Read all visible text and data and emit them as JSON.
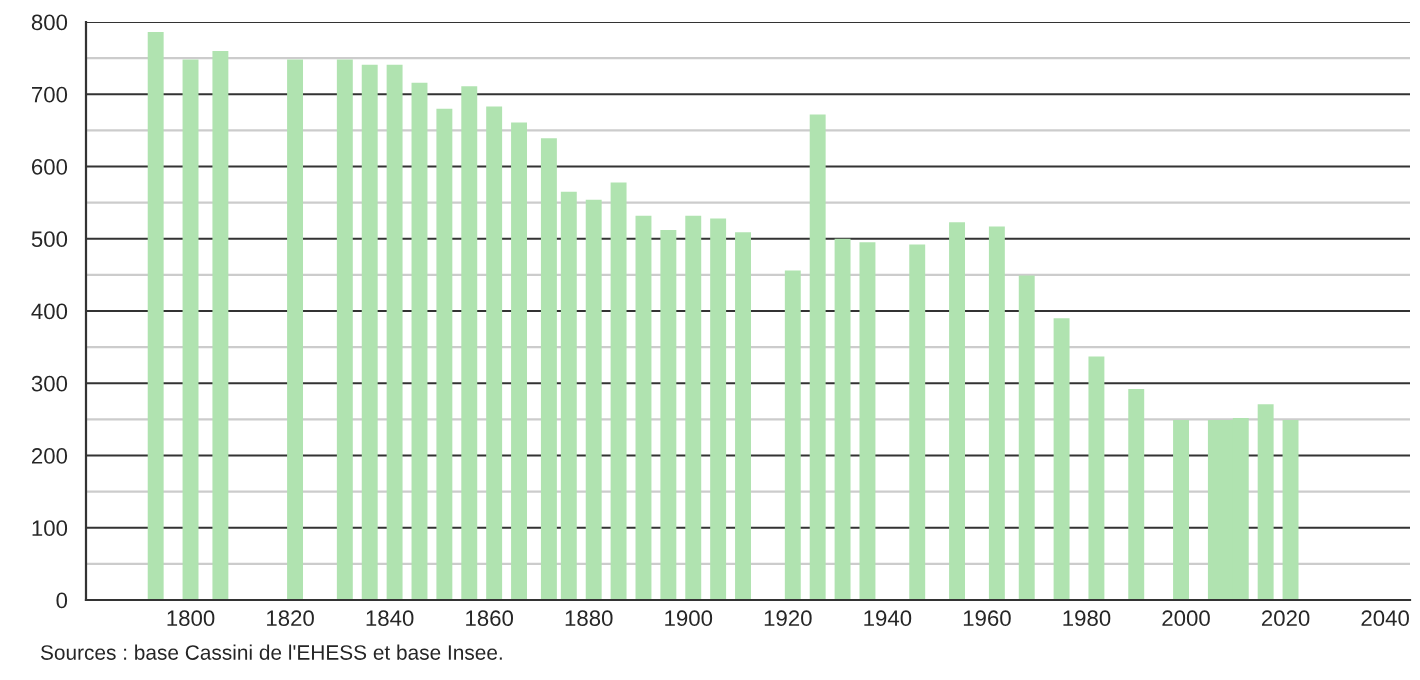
{
  "chart_data": {
    "type": "bar",
    "color": "#b0e3b0",
    "x": [
      1793,
      1800,
      1806,
      1821,
      1831,
      1836,
      1841,
      1846,
      1851,
      1856,
      1861,
      1866,
      1872,
      1876,
      1881,
      1886,
      1891,
      1896,
      1901,
      1906,
      1911,
      1921,
      1926,
      1931,
      1936,
      1946,
      1954,
      1962,
      1968,
      1975,
      1982,
      1990,
      1999,
      2006,
      2008,
      2011,
      2016,
      2021
    ],
    "values": [
      786,
      748,
      760,
      748,
      748,
      741,
      741,
      716,
      680,
      711,
      683,
      661,
      639,
      565,
      554,
      578,
      532,
      512,
      532,
      528,
      509,
      456,
      672,
      500,
      495,
      492,
      523,
      517,
      449,
      390,
      337,
      292,
      249,
      249,
      249,
      252,
      271,
      249
    ],
    "xlim": [
      1779,
      2045
    ],
    "xticks": [
      1800,
      1820,
      1840,
      1860,
      1880,
      1900,
      1920,
      1940,
      1960,
      1980,
      2000,
      2020,
      2040
    ],
    "ylim": [
      0,
      800
    ],
    "yticks": [
      0,
      100,
      200,
      300,
      400,
      500,
      600,
      700,
      800
    ],
    "grid": "y",
    "annotations": [
      "Sources : base Cassini de l'EHESS et base Insee."
    ]
  }
}
